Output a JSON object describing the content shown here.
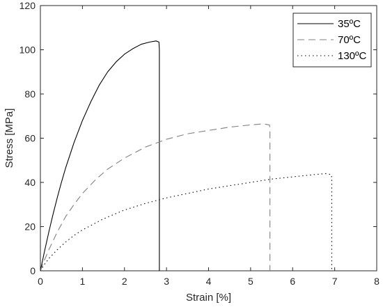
{
  "chart_data": {
    "type": "line",
    "xlabel": "Strain [%]",
    "ylabel": "Stress [MPa]",
    "xlim": [
      0,
      8
    ],
    "ylim": [
      0,
      120
    ],
    "xticks": [
      0,
      1,
      2,
      3,
      4,
      5,
      6,
      7,
      8
    ],
    "yticks": [
      0,
      20,
      40,
      60,
      80,
      100,
      120
    ],
    "grid": false,
    "legend_position": "top-right",
    "series": [
      {
        "name": "35ºC",
        "style": "solid",
        "color": "#000000",
        "x": [
          0,
          0.1,
          0.2,
          0.3,
          0.4,
          0.5,
          0.6,
          0.8,
          1.0,
          1.2,
          1.4,
          1.6,
          1.8,
          2.0,
          2.2,
          2.4,
          2.6,
          2.75,
          2.82,
          2.83,
          2.83
        ],
        "y": [
          0,
          9,
          17.5,
          25.5,
          33,
          40,
          46.5,
          58,
          68,
          76.5,
          84,
          90,
          94.5,
          98,
          100.5,
          102.5,
          103.5,
          104,
          103.5,
          100,
          0
        ]
      },
      {
        "name": "70ºC",
        "style": "dashed",
        "color": "#808080",
        "x": [
          0,
          0.1,
          0.2,
          0.4,
          0.6,
          0.8,
          1.0,
          1.3,
          1.6,
          2.0,
          2.5,
          3.0,
          3.5,
          4.0,
          4.5,
          5.0,
          5.3,
          5.45,
          5.46,
          5.46
        ],
        "y": [
          0,
          5,
          9.5,
          17.5,
          24.5,
          30,
          35,
          41,
          46,
          51,
          56,
          59.5,
          62,
          63.5,
          65,
          66,
          66.5,
          66,
          64,
          0
        ]
      },
      {
        "name": "130ºC",
        "style": "dotted",
        "color": "#000000",
        "x": [
          0,
          0.1,
          0.2,
          0.4,
          0.6,
          0.8,
          1.0,
          1.5,
          2.0,
          2.5,
          3.0,
          3.5,
          4.0,
          4.5,
          5.0,
          5.5,
          6.0,
          6.5,
          6.8,
          6.92,
          6.93,
          6.93
        ],
        "y": [
          0,
          3,
          5.5,
          9.5,
          13,
          16,
          18.5,
          23.5,
          27.5,
          30.5,
          33,
          35,
          37,
          38.5,
          40,
          41.5,
          42.5,
          43.5,
          44,
          43.5,
          42,
          0
        ]
      }
    ]
  }
}
